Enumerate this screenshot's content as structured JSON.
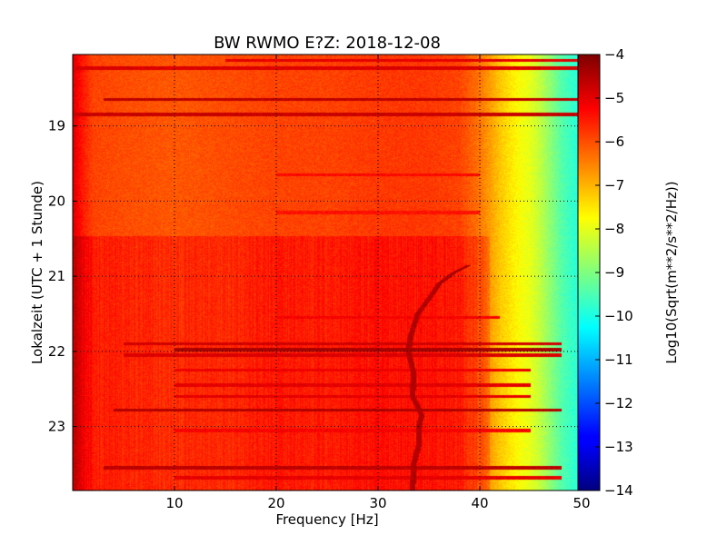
{
  "chart_data": {
    "type": "heatmap",
    "title": "BW RWMO E?Z: 2018-12-08",
    "xlabel": "Frequency [Hz]",
    "ylabel": "Lokalzeit (UTC + 1 Stunde)",
    "xlim": [
      0,
      50
    ],
    "ylim": [
      23.85,
      18.05
    ],
    "x_ticks": [
      10,
      20,
      30,
      40,
      50
    ],
    "x_tick_labels": [
      "10",
      "20",
      "30",
      "40",
      "50"
    ],
    "y_ticks": [
      19,
      20,
      21,
      22,
      23
    ],
    "y_tick_labels": [
      "19",
      "20",
      "21",
      "22",
      "23"
    ],
    "grid": true,
    "colorbar": {
      "label": "Log10(Sqrt(m**2/s**2/Hz))",
      "colormap": "jet",
      "range": [
        -14,
        -4
      ],
      "ticks": [
        -4,
        -5,
        -6,
        -7,
        -8,
        -9,
        -10,
        -11,
        -12,
        -13,
        -14
      ],
      "tick_labels": [
        "−4",
        "−5",
        "−6",
        "−7",
        "−8",
        "−9",
        "−10",
        "−11",
        "−12",
        "−13",
        "−14"
      ]
    },
    "background_spectrum": {
      "frequency_hz": [
        0,
        1,
        2,
        5,
        10,
        15,
        20,
        25,
        30,
        35,
        38,
        40,
        41,
        42,
        43,
        44,
        45,
        46,
        47,
        48,
        49,
        50
      ],
      "log10_amplitude": [
        -4.9,
        -5.5,
        -5.9,
        -6.0,
        -6.1,
        -6.0,
        -5.9,
        -5.9,
        -5.8,
        -5.8,
        -5.9,
        -6.4,
        -6.8,
        -7.2,
        -7.5,
        -7.8,
        -8.0,
        -8.4,
        -8.9,
        -9.4,
        -9.7,
        -10.0
      ]
    },
    "elevated_noise_period": {
      "start_time": 20.47,
      "end_time": 23.85,
      "frequency_range_hz": [
        0,
        41
      ],
      "delta_log10": 0.4
    },
    "horizontal_bands": [
      {
        "time": 18.13,
        "log10_amplitude": -5.0,
        "frequency_range_hz": [
          15,
          50
        ]
      },
      {
        "time": 18.23,
        "log10_amplitude": -4.9,
        "frequency_range_hz": [
          0,
          50
        ]
      },
      {
        "time": 18.65,
        "log10_amplitude": -4.6,
        "frequency_range_hz": [
          3,
          50
        ]
      },
      {
        "time": 18.85,
        "log10_amplitude": -4.7,
        "frequency_range_hz": [
          0,
          50
        ]
      },
      {
        "time": 19.65,
        "log10_amplitude": -5.3,
        "frequency_range_hz": [
          20,
          40
        ]
      },
      {
        "time": 20.15,
        "log10_amplitude": -5.4,
        "frequency_range_hz": [
          20,
          40
        ]
      },
      {
        "time": 21.55,
        "log10_amplitude": -5.2,
        "frequency_range_hz": [
          20,
          42
        ]
      },
      {
        "time": 21.9,
        "log10_amplitude": -4.8,
        "frequency_range_hz": [
          5,
          48
        ]
      },
      {
        "time": 21.98,
        "log10_amplitude": -4.4,
        "frequency_range_hz": [
          10,
          48
        ]
      },
      {
        "time": 22.05,
        "log10_amplitude": -4.9,
        "frequency_range_hz": [
          5,
          48
        ]
      },
      {
        "time": 22.25,
        "log10_amplitude": -5.1,
        "frequency_range_hz": [
          10,
          45
        ]
      },
      {
        "time": 22.45,
        "log10_amplitude": -5.0,
        "frequency_range_hz": [
          10,
          45
        ]
      },
      {
        "time": 22.6,
        "log10_amplitude": -5.0,
        "frequency_range_hz": [
          10,
          45
        ]
      },
      {
        "time": 22.78,
        "log10_amplitude": -4.5,
        "frequency_range_hz": [
          4,
          48
        ]
      },
      {
        "time": 23.05,
        "log10_amplitude": -5.2,
        "frequency_range_hz": [
          10,
          45
        ]
      },
      {
        "time": 23.55,
        "log10_amplitude": -4.6,
        "frequency_range_hz": [
          3,
          48
        ]
      },
      {
        "time": 23.68,
        "log10_amplitude": -5.0,
        "frequency_range_hz": [
          10,
          48
        ]
      }
    ],
    "frequency_drift_track": {
      "log10_amplitude": -4.5,
      "points": [
        {
          "time": 20.85,
          "freq_hz": 39.0
        },
        {
          "time": 20.95,
          "freq_hz": 37.5
        },
        {
          "time": 21.1,
          "freq_hz": 36.0
        },
        {
          "time": 21.3,
          "freq_hz": 35.0
        },
        {
          "time": 21.5,
          "freq_hz": 33.9
        },
        {
          "time": 21.8,
          "freq_hz": 33.2
        },
        {
          "time": 22.0,
          "freq_hz": 33.0
        },
        {
          "time": 22.3,
          "freq_hz": 33.5
        },
        {
          "time": 22.6,
          "freq_hz": 33.4
        },
        {
          "time": 22.85,
          "freq_hz": 34.3
        },
        {
          "time": 23.0,
          "freq_hz": 34.0
        },
        {
          "time": 23.25,
          "freq_hz": 34.0
        },
        {
          "time": 23.5,
          "freq_hz": 33.5
        },
        {
          "time": 23.85,
          "freq_hz": 33.4
        }
      ]
    }
  }
}
